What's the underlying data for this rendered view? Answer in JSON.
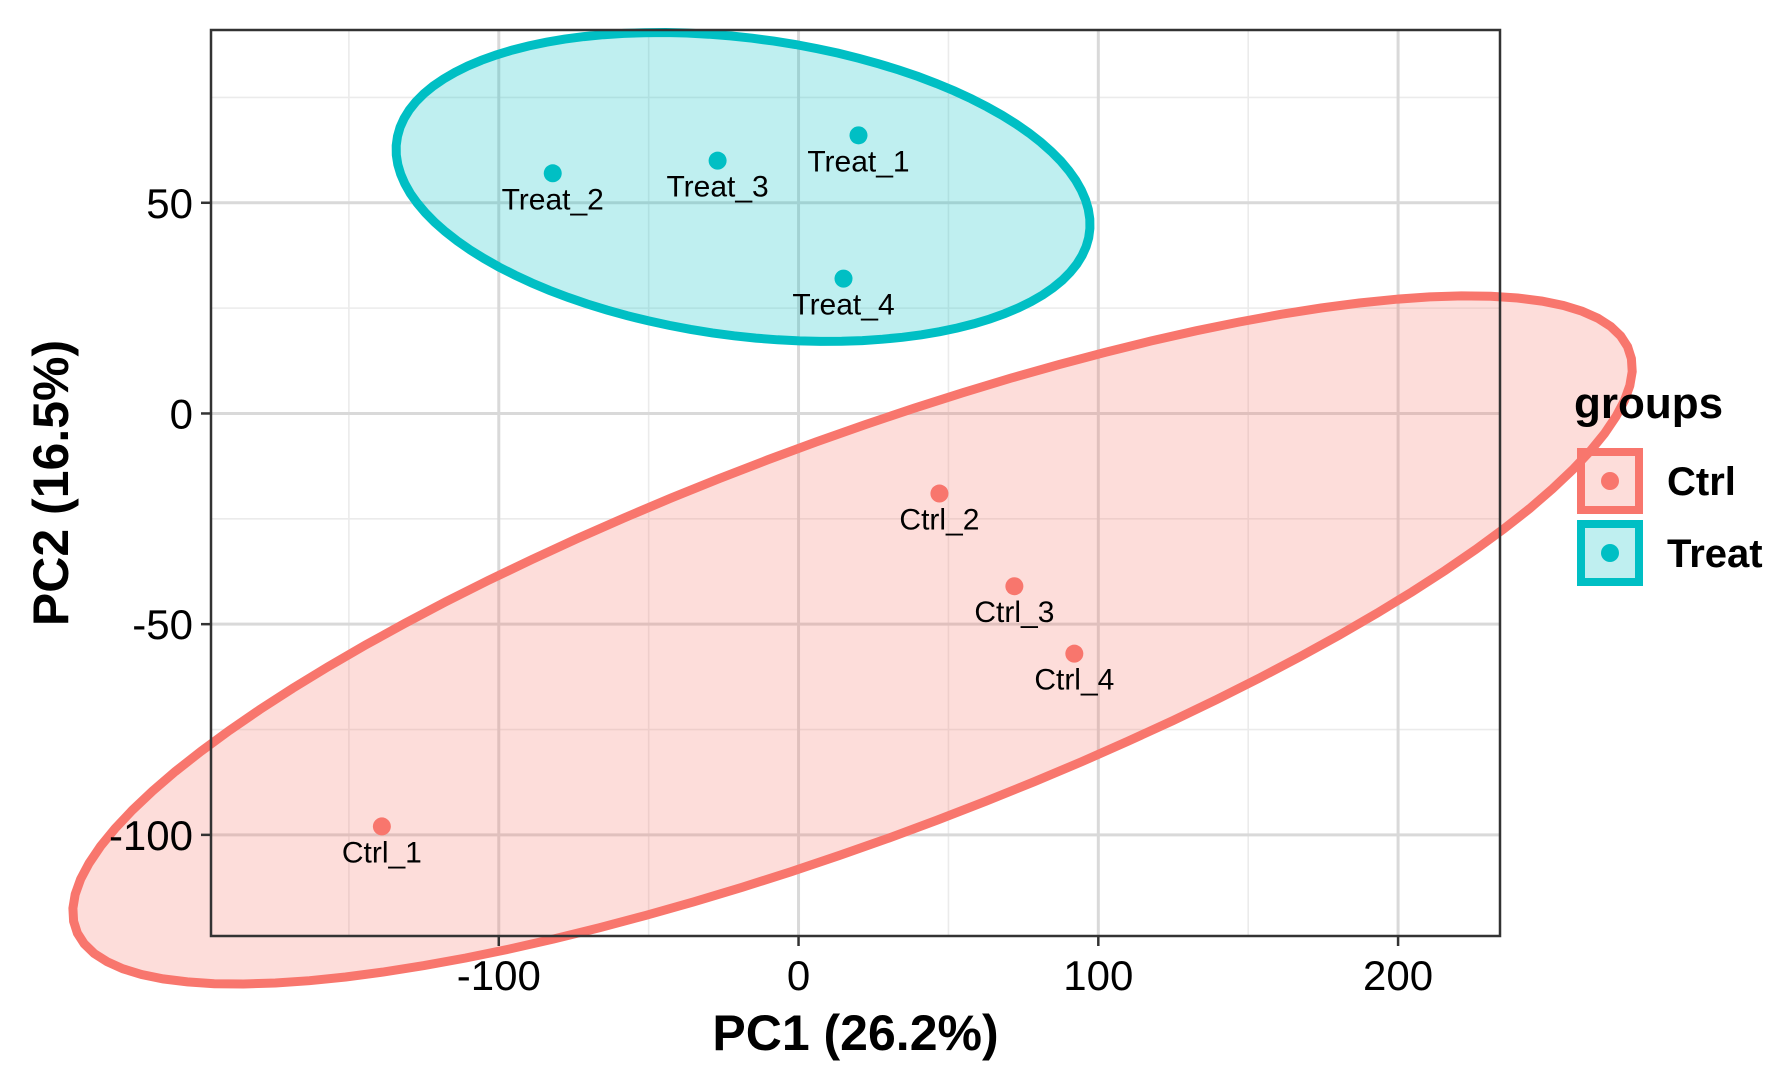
{
  "chart_data": {
    "type": "scatter",
    "xlabel": "PC1 (26.2%)",
    "ylabel": "PC2 (16.5%)",
    "xlim": [
      -196,
      234
    ],
    "ylim": [
      -124,
      91
    ],
    "xticks": [
      -100,
      0,
      100,
      200
    ],
    "yticks": [
      -100,
      -50,
      0,
      50
    ],
    "grid": true,
    "legend": {
      "title": "groups",
      "position": "right"
    },
    "series": [
      {
        "name": "Ctrl",
        "color": "#F8766D",
        "points": [
          {
            "label": "Ctrl_1",
            "x": -139,
            "y": -98
          },
          {
            "label": "Ctrl_2",
            "x": 47,
            "y": -19
          },
          {
            "label": "Ctrl_3",
            "x": 72,
            "y": -41
          },
          {
            "label": "Ctrl_4",
            "x": 92,
            "y": -57
          }
        ]
      },
      {
        "name": "Treat",
        "color": "#00BFC4",
        "points": [
          {
            "label": "Treat_1",
            "x": 20,
            "y": 66
          },
          {
            "label": "Treat_2",
            "x": -82,
            "y": 57
          },
          {
            "label": "Treat_3",
            "x": -27,
            "y": 60
          },
          {
            "label": "Treat_4",
            "x": 15,
            "y": 32
          }
        ]
      }
    ]
  }
}
